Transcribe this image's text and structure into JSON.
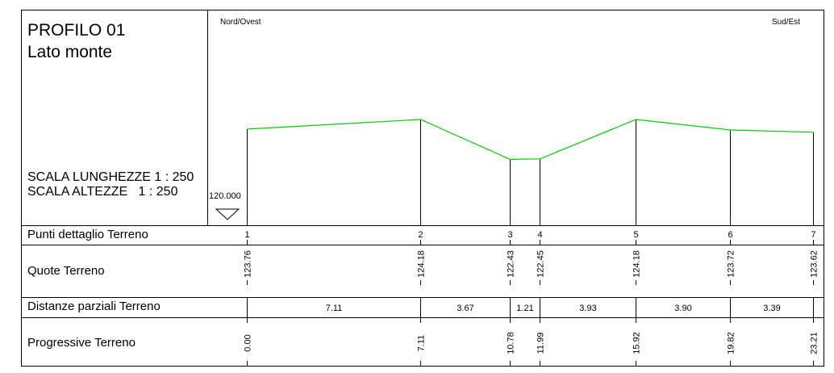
{
  "header": {
    "title": "PROFILO 01",
    "subtitle": "Lato monte",
    "scale_lengths": "SCALA LUNGHEZZE 1 : 250",
    "scale_heights": "SCALA ALTEZZE   1 : 250"
  },
  "profile": {
    "direction_left": "Nord/Ovest",
    "direction_right": "Sud/Est",
    "reference_level": "120.000",
    "reference_level_value": 120.0,
    "profile_color": "#00cc00",
    "points": [
      {
        "id": "1",
        "quota": "123.76",
        "progressiva": "0.00",
        "progressiva_value": 0.0,
        "quota_value": 123.76
      },
      {
        "id": "2",
        "quota": "124.18",
        "progressiva": "7.11",
        "progressiva_value": 7.11,
        "quota_value": 124.18
      },
      {
        "id": "3",
        "quota": "122.43",
        "progressiva": "10.78",
        "progressiva_value": 10.78,
        "quota_value": 122.43
      },
      {
        "id": "4",
        "quota": "122.45",
        "progressiva": "11.99",
        "progressiva_value": 11.99,
        "quota_value": 122.45
      },
      {
        "id": "5",
        "quota": "124.18",
        "progressiva": "15.92",
        "progressiva_value": 15.92,
        "quota_value": 124.18
      },
      {
        "id": "6",
        "quota": "123.72",
        "progressiva": "19.82",
        "progressiva_value": 19.82,
        "quota_value": 123.72
      },
      {
        "id": "7",
        "quota": "123.62",
        "progressiva": "23.21",
        "progressiva_value": 23.21,
        "quota_value": 123.62
      }
    ],
    "distanze": [
      "7.11",
      "3.67",
      "1.21",
      "3.93",
      "3.90",
      "3.39"
    ]
  },
  "table": {
    "row_punti": "Punti dettaglio Terreno",
    "row_quote": "Quote Terreno",
    "row_distanze": "Distanze parziali Terreno",
    "row_progressive": "Progressive Terreno"
  }
}
